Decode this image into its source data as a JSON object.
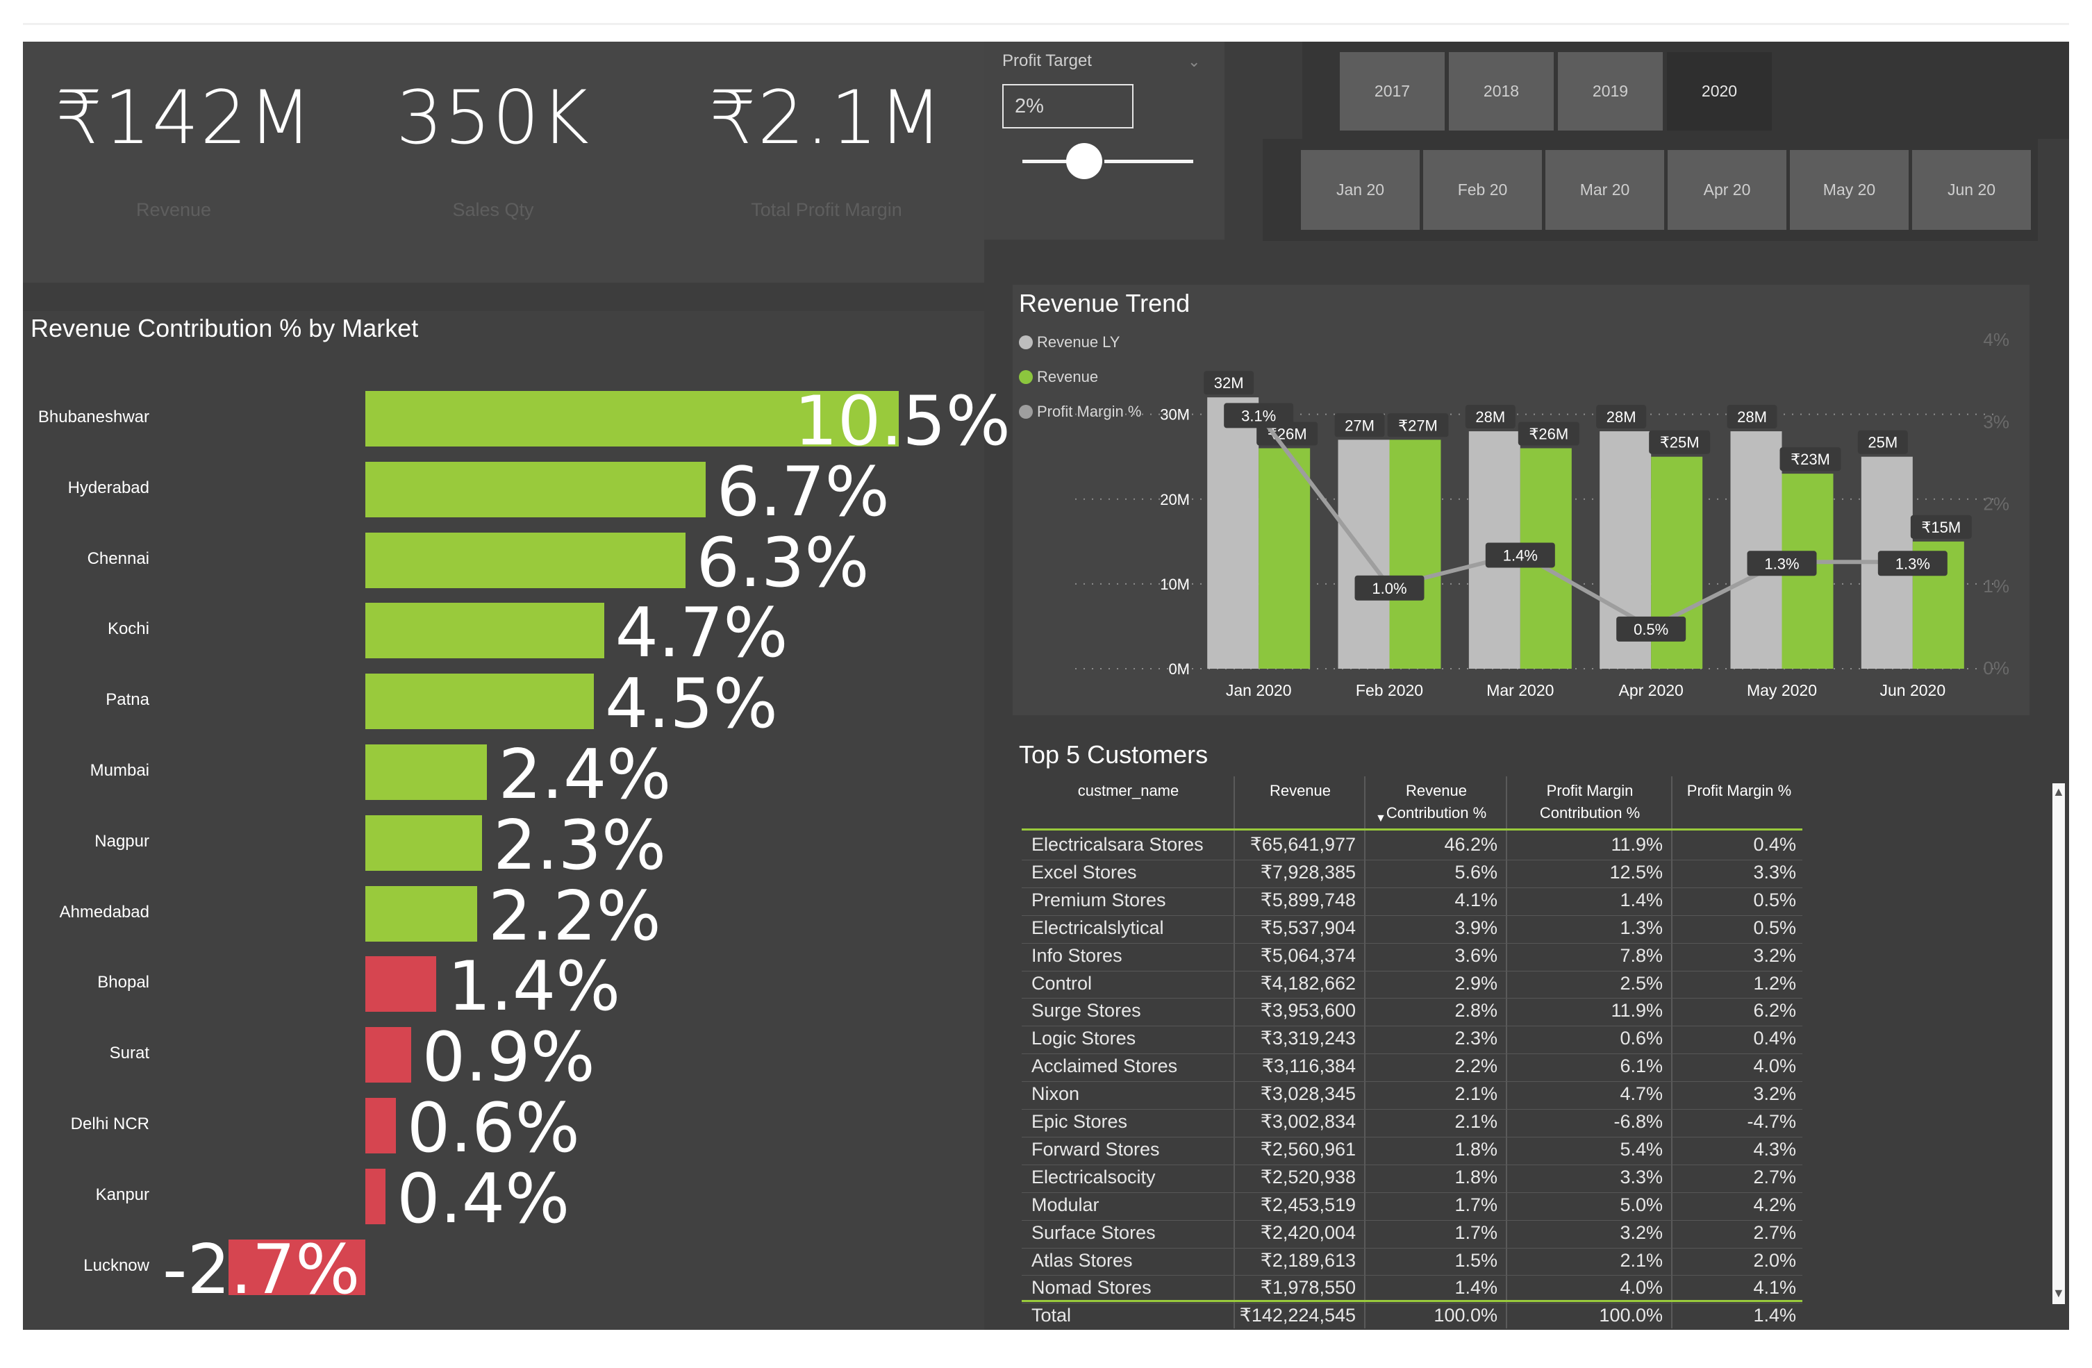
{
  "kpis": [
    {
      "value": "₹142M",
      "label": "Revenue"
    },
    {
      "value": "350K",
      "label": "Sales Qty"
    },
    {
      "value": "₹2.1M",
      "label": "Total Profit Margin"
    }
  ],
  "profit_target": {
    "label": "Profit Target",
    "value": "2%",
    "slider_fraction": 0.28
  },
  "years": [
    "2017",
    "2018",
    "2019",
    "2020"
  ],
  "selected_year": "2020",
  "months": [
    "Jan 20",
    "Feb 20",
    "Mar 20",
    "Apr 20",
    "May 20",
    "Jun 20"
  ],
  "market_chart": {
    "title": "Revenue Contribution % by Market",
    "positive_color": "#99ca3c",
    "negative_color": "#d64550",
    "threshold": 2.0,
    "rows": [
      {
        "market": "Bhubaneshwar",
        "value": 10.5,
        "label": "10.5%"
      },
      {
        "market": "Hyderabad",
        "value": 6.7,
        "label": "6.7%"
      },
      {
        "market": "Chennai",
        "value": 6.3,
        "label": "6.3%"
      },
      {
        "market": "Kochi",
        "value": 4.7,
        "label": "4.7%"
      },
      {
        "market": "Patna",
        "value": 4.5,
        "label": "4.5%"
      },
      {
        "market": "Mumbai",
        "value": 2.4,
        "label": "2.4%"
      },
      {
        "market": "Nagpur",
        "value": 2.3,
        "label": "2.3%"
      },
      {
        "market": "Ahmedabad",
        "value": 2.2,
        "label": "2.2%"
      },
      {
        "market": "Bhopal",
        "value": 1.4,
        "label": "1.4%"
      },
      {
        "market": "Surat",
        "value": 0.9,
        "label": "0.9%"
      },
      {
        "market": "Delhi NCR",
        "value": 0.6,
        "label": "0.6%"
      },
      {
        "market": "Kanpur",
        "value": 0.4,
        "label": "0.4%"
      },
      {
        "market": "Lucknow",
        "value": -2.7,
        "label": "-2.7%"
      }
    ]
  },
  "chart_data": {
    "type": "bar",
    "title": "Revenue Trend",
    "categories": [
      "Jan 2020",
      "Feb 2020",
      "Mar 2020",
      "Apr 2020",
      "May 2020",
      "Jun 2020"
    ],
    "series": [
      {
        "name": "Revenue LY",
        "type": "bar",
        "color": "#bdbdbd",
        "values": [
          32,
          27,
          28,
          28,
          28,
          25
        ],
        "labels": [
          "32M",
          "27M",
          "28M",
          "28M",
          "28M",
          "25M"
        ]
      },
      {
        "name": "Revenue",
        "type": "bar",
        "color": "#8cc63e",
        "values": [
          26,
          27,
          26,
          25,
          23,
          15
        ],
        "labels": [
          "₹26M",
          "₹27M",
          "₹26M",
          "₹25M",
          "₹23M",
          "₹15M"
        ]
      },
      {
        "name": "Profit Margin %",
        "type": "line",
        "axis": "right",
        "color": "#9e9e9e",
        "values": [
          3.1,
          1.0,
          1.4,
          0.5,
          1.3,
          1.3
        ],
        "labels": [
          "3.1%",
          "1.0%",
          "1.4%",
          "0.5%",
          "1.3%",
          "1.3%"
        ]
      }
    ],
    "y_ticks": [
      "0M",
      "10M",
      "20M",
      "30M"
    ],
    "ylim": [
      0,
      33
    ],
    "y2_ticks": [
      "0%",
      "1%",
      "2%",
      "3%",
      "4%"
    ],
    "y2lim": [
      0,
      4
    ],
    "legend_position": "top-left",
    "grid": "dotted"
  },
  "customers": {
    "title": "Top 5 Customers",
    "columns": [
      "custmer_name",
      "Revenue",
      "Revenue Contribution %",
      "Profit Margin Contribution %",
      "Profit Margin %"
    ],
    "rows": [
      [
        "Electricalsara Stores",
        "₹65,641,977",
        "46.2%",
        "11.9%",
        "0.4%"
      ],
      [
        "Excel Stores",
        "₹7,928,385",
        "5.6%",
        "12.5%",
        "3.3%"
      ],
      [
        "Premium Stores",
        "₹5,899,748",
        "4.1%",
        "1.4%",
        "0.5%"
      ],
      [
        "Electricalslytical",
        "₹5,537,904",
        "3.9%",
        "1.3%",
        "0.5%"
      ],
      [
        "Info Stores",
        "₹5,064,374",
        "3.6%",
        "7.8%",
        "3.2%"
      ],
      [
        "Control",
        "₹4,182,662",
        "2.9%",
        "2.5%",
        "1.2%"
      ],
      [
        "Surge Stores",
        "₹3,953,600",
        "2.8%",
        "11.9%",
        "6.2%"
      ],
      [
        "Logic Stores",
        "₹3,319,243",
        "2.3%",
        "0.6%",
        "0.4%"
      ],
      [
        "Acclaimed Stores",
        "₹3,116,384",
        "2.2%",
        "6.1%",
        "4.0%"
      ],
      [
        "Nixon",
        "₹3,028,345",
        "2.1%",
        "4.7%",
        "3.2%"
      ],
      [
        "Epic Stores",
        "₹3,002,834",
        "2.1%",
        "-6.8%",
        "-4.7%"
      ],
      [
        "Forward Stores",
        "₹2,560,961",
        "1.8%",
        "5.4%",
        "4.3%"
      ],
      [
        "Electricalsocity",
        "₹2,520,938",
        "1.8%",
        "3.3%",
        "2.7%"
      ],
      [
        "Modular",
        "₹2,453,519",
        "1.7%",
        "5.0%",
        "4.2%"
      ],
      [
        "Surface Stores",
        "₹2,420,004",
        "1.7%",
        "3.2%",
        "2.7%"
      ],
      [
        "Atlas Stores",
        "₹2,189,613",
        "1.5%",
        "2.1%",
        "2.0%"
      ],
      [
        "Nomad Stores",
        "₹1,978,550",
        "1.4%",
        "4.0%",
        "4.1%"
      ]
    ],
    "total": [
      "Total",
      "₹142,224,545",
      "100.0%",
      "100.0%",
      "1.4%"
    ]
  }
}
